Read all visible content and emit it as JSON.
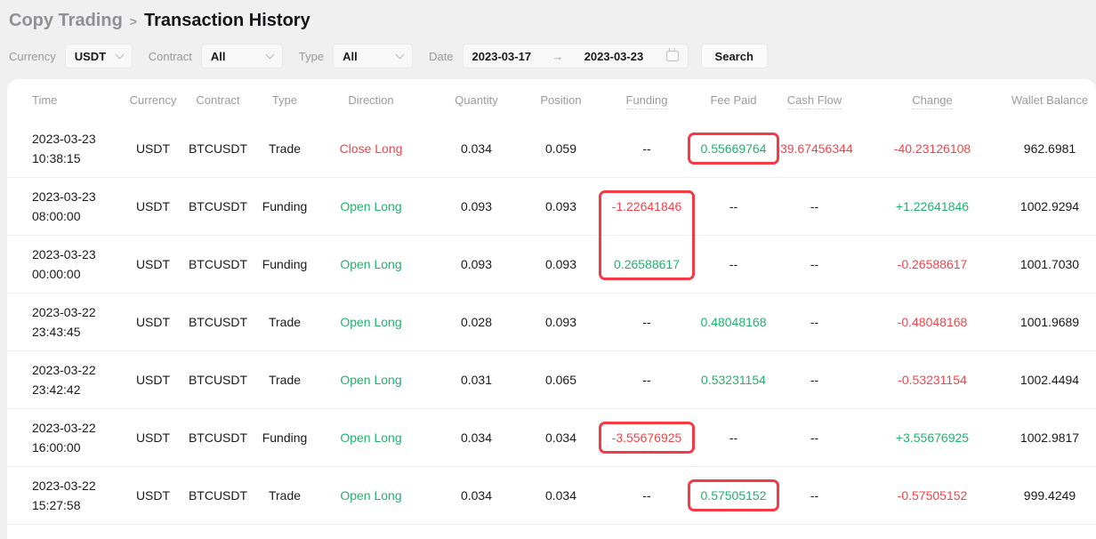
{
  "breadcrumb": {
    "parent": "Copy Trading",
    "separator": ">",
    "current": "Transaction History"
  },
  "filters": {
    "currency": {
      "label": "Currency",
      "value": "USDT"
    },
    "contract": {
      "label": "Contract",
      "value": "All"
    },
    "type": {
      "label": "Type",
      "value": "All"
    },
    "date": {
      "label": "Date",
      "start": "2023-03-17",
      "arrow": "→",
      "end": "2023-03-23"
    },
    "search_label": "Search"
  },
  "table": {
    "colors": {
      "green": "#20b26c",
      "red": "#ef454a",
      "highlight": "#f43b45"
    },
    "columns": [
      {
        "key": "time",
        "label": "Time"
      },
      {
        "key": "currency",
        "label": "Currency"
      },
      {
        "key": "contract",
        "label": "Contract"
      },
      {
        "key": "type",
        "label": "Type"
      },
      {
        "key": "direction",
        "label": "Direction"
      },
      {
        "key": "quantity",
        "label": "Quantity"
      },
      {
        "key": "position",
        "label": "Position"
      },
      {
        "key": "funding",
        "label": "Funding",
        "has_tooltip": true
      },
      {
        "key": "fee_paid",
        "label": "Fee Paid"
      },
      {
        "key": "cash_flow",
        "label": "Cash Flow",
        "has_tooltip": true
      },
      {
        "key": "change",
        "label": "Change",
        "has_tooltip": true
      },
      {
        "key": "wallet_balance",
        "label": "Wallet Balance"
      }
    ],
    "rows": [
      {
        "time": [
          "2023-03-23",
          "10:38:15"
        ],
        "currency": "USDT",
        "contract": "BTCUSDT",
        "type": "Trade",
        "direction": {
          "text": "Close Long",
          "color": "red"
        },
        "quantity": "0.034",
        "position": "0.059",
        "funding": "--",
        "fee_paid": {
          "text": "0.55669764",
          "color": "green"
        },
        "cash_flow": {
          "text": "-39.67456344",
          "color": "red"
        },
        "change": {
          "text": "-40.23126108",
          "color": "red"
        },
        "wallet_balance": "962.6981"
      },
      {
        "time": [
          "2023-03-23",
          "08:00:00"
        ],
        "currency": "USDT",
        "contract": "BTCUSDT",
        "type": "Funding",
        "direction": {
          "text": "Open Long",
          "color": "green"
        },
        "quantity": "0.093",
        "position": "0.093",
        "funding": {
          "text": "-1.22641846",
          "color": "red"
        },
        "fee_paid": "--",
        "cash_flow": "--",
        "change": {
          "text": "+1.22641846",
          "color": "green"
        },
        "wallet_balance": "1002.9294"
      },
      {
        "time": [
          "2023-03-23",
          "00:00:00"
        ],
        "currency": "USDT",
        "contract": "BTCUSDT",
        "type": "Funding",
        "direction": {
          "text": "Open Long",
          "color": "green"
        },
        "quantity": "0.093",
        "position": "0.093",
        "funding": {
          "text": "0.26588617",
          "color": "green"
        },
        "fee_paid": "--",
        "cash_flow": "--",
        "change": {
          "text": "-0.26588617",
          "color": "red"
        },
        "wallet_balance": "1001.7030"
      },
      {
        "time": [
          "2023-03-22",
          "23:43:45"
        ],
        "currency": "USDT",
        "contract": "BTCUSDT",
        "type": "Trade",
        "direction": {
          "text": "Open Long",
          "color": "green"
        },
        "quantity": "0.028",
        "position": "0.093",
        "funding": "--",
        "fee_paid": {
          "text": "0.48048168",
          "color": "green"
        },
        "cash_flow": "--",
        "change": {
          "text": "-0.48048168",
          "color": "red"
        },
        "wallet_balance": "1001.9689"
      },
      {
        "time": [
          "2023-03-22",
          "23:42:42"
        ],
        "currency": "USDT",
        "contract": "BTCUSDT",
        "type": "Trade",
        "direction": {
          "text": "Open Long",
          "color": "green"
        },
        "quantity": "0.031",
        "position": "0.065",
        "funding": "--",
        "fee_paid": {
          "text": "0.53231154",
          "color": "green"
        },
        "cash_flow": "--",
        "change": {
          "text": "-0.53231154",
          "color": "red"
        },
        "wallet_balance": "1002.4494"
      },
      {
        "time": [
          "2023-03-22",
          "16:00:00"
        ],
        "currency": "USDT",
        "contract": "BTCUSDT",
        "type": "Funding",
        "direction": {
          "text": "Open Long",
          "color": "green"
        },
        "quantity": "0.034",
        "position": "0.034",
        "funding": {
          "text": "-3.55676925",
          "color": "red"
        },
        "fee_paid": "--",
        "cash_flow": "--",
        "change": {
          "text": "+3.55676925",
          "color": "green"
        },
        "wallet_balance": "1002.9817"
      },
      {
        "time": [
          "2023-03-22",
          "15:27:58"
        ],
        "currency": "USDT",
        "contract": "BTCUSDT",
        "type": "Trade",
        "direction": {
          "text": "Open Long",
          "color": "green"
        },
        "quantity": "0.034",
        "position": "0.034",
        "funding": "--",
        "fee_paid": {
          "text": "0.57505152",
          "color": "green"
        },
        "cash_flow": "--",
        "change": {
          "text": "-0.57505152",
          "color": "red"
        },
        "wallet_balance": "999.4249"
      }
    ]
  },
  "annotations": [
    {
      "cells": [
        [
          0,
          "fee_paid"
        ]
      ]
    },
    {
      "cells": [
        [
          1,
          "funding"
        ],
        [
          2,
          "funding"
        ]
      ]
    },
    {
      "cells": [
        [
          5,
          "funding"
        ]
      ]
    },
    {
      "cells": [
        [
          6,
          "fee_paid"
        ]
      ]
    }
  ]
}
